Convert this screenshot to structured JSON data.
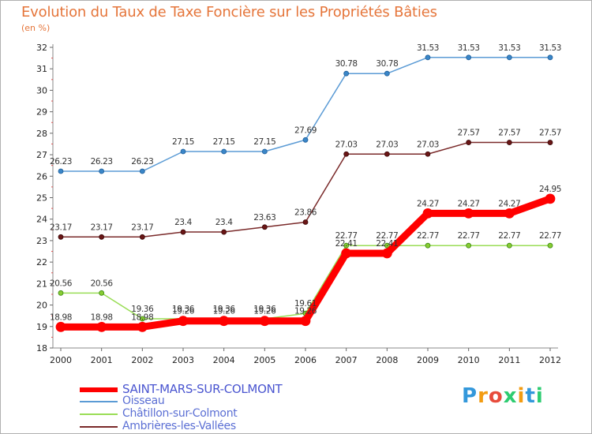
{
  "title": "Evolution du Taux de Taxe Foncière sur les Propriétés Bâties",
  "unit_label": "(en %)",
  "logo": {
    "text": "Proxiti"
  },
  "chart_data": {
    "type": "line",
    "title": "Evolution du Taux de Taxe Foncière sur les Propriétés Bâties",
    "ylabel": "(en %)",
    "xlabel": "",
    "ylim": [
      18,
      32
    ],
    "yticks": [
      18,
      19,
      20,
      21,
      22,
      23,
      24,
      25,
      26,
      27,
      28,
      29,
      30,
      31,
      32
    ],
    "grid": false,
    "legend_position": "bottom-left",
    "x": [
      "2000",
      "2001",
      "2002",
      "2003",
      "2004",
      "2005",
      "2006",
      "2007",
      "2008",
      "2009",
      "2010",
      "2011",
      "2012"
    ],
    "series": [
      {
        "name": "SAINT-MARS-SUR-COLMONT",
        "color": "#ff0000",
        "values": [
          18.98,
          18.98,
          18.98,
          19.26,
          19.26,
          19.26,
          19.26,
          22.41,
          22.41,
          24.27,
          24.27,
          24.27,
          24.95
        ],
        "labels": [
          "18.98",
          "18.98",
          "18.98",
          "19.26",
          "19.26",
          "19.26",
          "19.26",
          "22.41",
          "22.41",
          "24.27",
          "24.27",
          "24.27",
          "24.95"
        ]
      },
      {
        "name": "Oisseau",
        "color": "#5b9bd5",
        "values": [
          26.23,
          26.23,
          26.23,
          27.15,
          27.15,
          27.15,
          27.69,
          30.78,
          30.78,
          31.53,
          31.53,
          31.53,
          31.53
        ],
        "labels": [
          "26.23",
          "26.23",
          "26.23",
          "27.15",
          "27.15",
          "27.15",
          "27.69",
          "30.78",
          "30.78",
          "31.53",
          "31.53",
          "31.53",
          "31.53"
        ]
      },
      {
        "name": "Châtillon-sur-Colmont",
        "color": "#99dd55",
        "values": [
          20.56,
          20.56,
          19.36,
          19.36,
          19.36,
          19.36,
          19.61,
          22.77,
          22.77,
          22.77,
          22.77,
          22.77,
          22.77
        ],
        "labels": [
          "20.56",
          "20.56",
          "19.36",
          "19.36",
          "19.36",
          "19.36",
          "19.61",
          "22.77",
          "22.77",
          "22.77",
          "22.77",
          "22.77",
          "22.77"
        ]
      },
      {
        "name": "Ambrières-les-Vallées",
        "color": "#7a2a2a",
        "values": [
          23.17,
          23.17,
          23.17,
          23.4,
          23.4,
          23.63,
          23.86,
          27.03,
          27.03,
          27.03,
          27.57,
          27.57,
          27.57
        ],
        "labels": [
          "23.17",
          "23.17",
          "23.17",
          "23.4",
          "23.4",
          "23.63",
          "23.86",
          "27.03",
          "27.03",
          "27.03",
          "27.57",
          "27.57",
          "27.57"
        ]
      }
    ]
  }
}
